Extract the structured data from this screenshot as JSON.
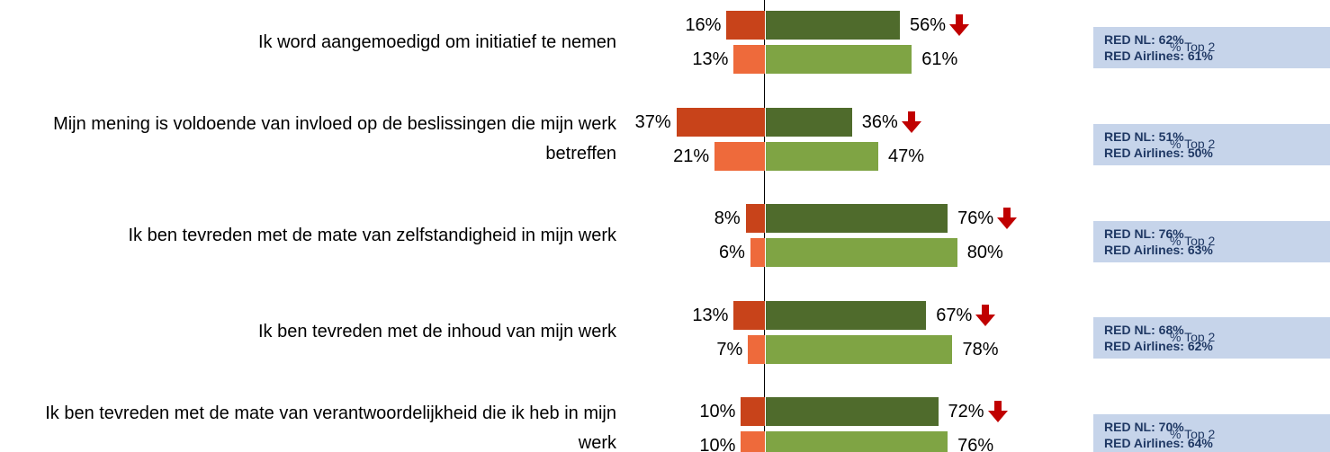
{
  "chart_data": {
    "type": "diverging-bar",
    "categories": [
      "Ik word aangemoedigd om initiatief te nemen",
      "Mijn mening is voldoende van invloed op de beslissingen die mijn werk betreffen",
      "Ik ben tevreden met de mate van zelfstandigheid in mijn werk",
      "Ik ben tevreden met de inhoud van mijn werk",
      "Ik ben tevreden met de mate van verantwoordelijkheid die ik heb in mijn werk"
    ],
    "series": [
      {
        "side": "left",
        "color": "#c8431a",
        "values": [
          16,
          37,
          8,
          13,
          10
        ],
        "value_labels": [
          "16%",
          "37%",
          "8%",
          "13%",
          "10%"
        ]
      },
      {
        "side": "left",
        "color": "#ee6a3b",
        "values": [
          13,
          21,
          6,
          7,
          10
        ],
        "value_labels": [
          "13%",
          "21%",
          "6%",
          "7%",
          "10%"
        ]
      },
      {
        "side": "right",
        "color": "#4f6b2c",
        "values": [
          56,
          36,
          76,
          67,
          72
        ],
        "value_labels": [
          "56%",
          "36%",
          "76%",
          "67%",
          "72%"
        ]
      },
      {
        "side": "right",
        "color": "#7fa444",
        "values": [
          61,
          47,
          80,
          78,
          76
        ],
        "value_labels": [
          "61%",
          "47%",
          "80%",
          "78%",
          "76%"
        ]
      }
    ],
    "benchmarks": [
      {
        "lines": [
          "RED NL: 62%",
          "RED Airlines: 61%"
        ],
        "note": "% Top 2"
      },
      {
        "lines": [
          "RED NL: 51%",
          "RED Airlines: 50%"
        ],
        "note": "% Top 2"
      },
      {
        "lines": [
          "RED NL: 76%",
          "RED Airlines: 63%"
        ],
        "note": "% Top 2"
      },
      {
        "lines": [
          "RED NL: 68%",
          "RED Airlines: 62%"
        ],
        "note": "% Top 2"
      },
      {
        "lines": [
          "RED NL: 70%",
          "RED Airlines: 64%"
        ],
        "note": "% Top 2"
      }
    ]
  }
}
